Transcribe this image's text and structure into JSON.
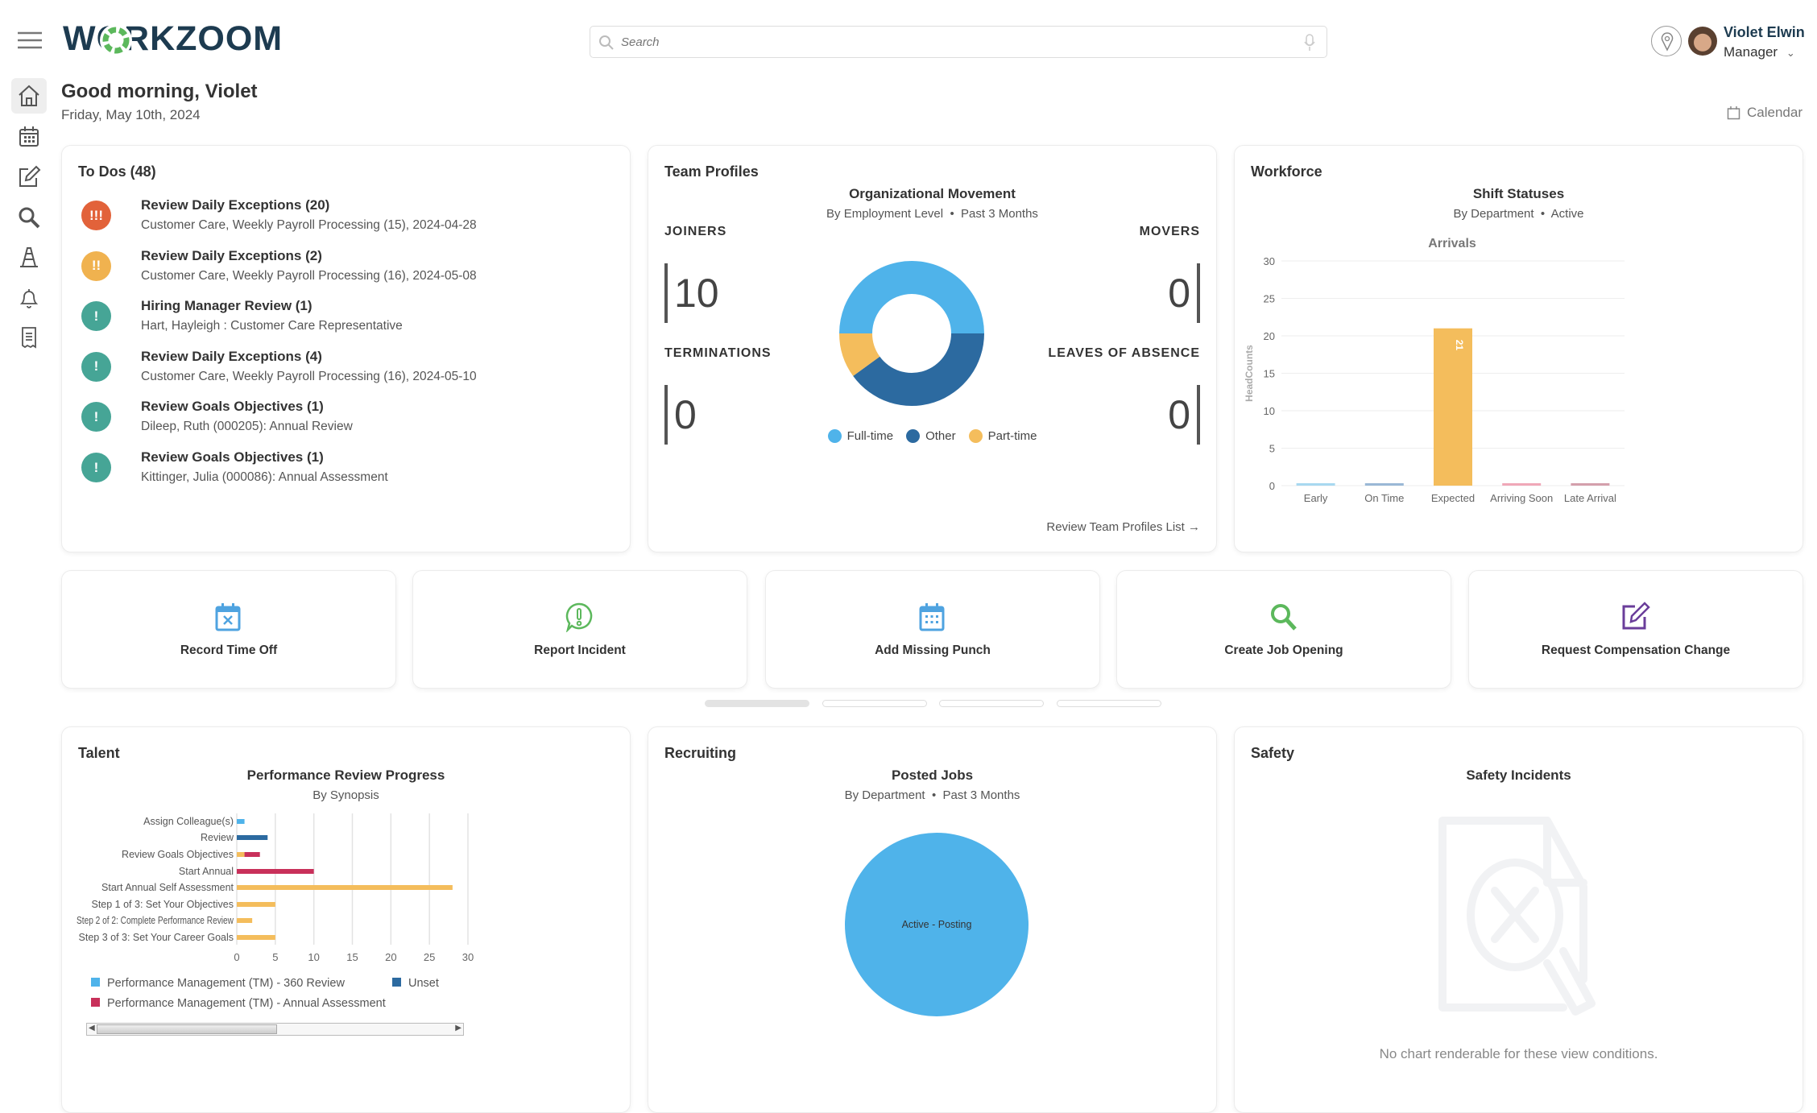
{
  "header": {
    "app_name": "WORKZOOM",
    "search_placeholder": "Search",
    "user_name": "Violet Elwin",
    "user_role": "Manager"
  },
  "sidebar": {
    "items": [
      {
        "icon": "home-icon"
      },
      {
        "icon": "calendar-icon"
      },
      {
        "icon": "edit-icon"
      },
      {
        "icon": "search-icon"
      },
      {
        "icon": "cone-icon"
      },
      {
        "icon": "bell-icon"
      },
      {
        "icon": "receipt-icon"
      }
    ]
  },
  "greeting": {
    "title": "Good morning, Violet",
    "date": "Friday, May 10th, 2024",
    "calendar_link": "Calendar"
  },
  "todos": {
    "title": "To Dos (48)",
    "items": [
      {
        "title": "Review Daily Exceptions (20)",
        "subtitle": "Customer Care, Weekly Payroll Processing (15), 2024-04-28",
        "badge": "!!!",
        "color": "#e2623a"
      },
      {
        "title": "Review Daily Exceptions (2)",
        "subtitle": "Customer Care, Weekly Payroll Processing (16), 2024-05-08",
        "badge": "!!",
        "color": "#f0b24f"
      },
      {
        "title": "Hiring Manager Review (1)",
        "subtitle": "Hart, Hayleigh : Customer Care Representative",
        "badge": "!",
        "color": "#46a596"
      },
      {
        "title": "Review Daily Exceptions (4)",
        "subtitle": "Customer Care, Weekly Payroll Processing (16), 2024-05-10",
        "badge": "!",
        "color": "#46a596"
      },
      {
        "title": "Review Goals Objectives (1)",
        "subtitle": "Dileep, Ruth (000205): Annual Review",
        "badge": "!",
        "color": "#46a596"
      },
      {
        "title": "Review Goals Objectives (1)",
        "subtitle": "Kittinger, Julia (000086): Annual Assessment",
        "badge": "!",
        "color": "#46a596"
      }
    ]
  },
  "team": {
    "title": "Team Profiles",
    "chart_title": "Organizational Movement",
    "sub1": "By Employment Level",
    "sub2": "Past 3 Months",
    "joiners_label": "JOINERS",
    "joiners": "10",
    "movers_label": "MOVERS",
    "movers": "0",
    "terminations_label": "TERMINATIONS",
    "terminations": "0",
    "loa_label": "LEAVES OF ABSENCE",
    "loa": "0",
    "link": "Review Team Profiles List →"
  },
  "workforce": {
    "title": "Workforce",
    "chart_title": "Shift Statuses",
    "sub1": "By Department",
    "sub2": "Active"
  },
  "quick_actions": [
    {
      "label": "Record Time Off",
      "icon": "calendar-x-icon",
      "color": "#4fa3e0"
    },
    {
      "label": "Report Incident",
      "icon": "alert-bubble-icon",
      "color": "#5cb85c"
    },
    {
      "label": "Add Missing Punch",
      "icon": "calendar-grid-icon",
      "color": "#4fa3e0"
    },
    {
      "label": "Create Job Opening",
      "icon": "search-icon",
      "color": "#5cb85c"
    },
    {
      "label": "Request Compensation Change",
      "icon": "edit-icon",
      "color": "#6a3d9a"
    }
  ],
  "pager": {
    "pages": 4,
    "active": 1
  },
  "talent": {
    "title": "Talent",
    "chart_title": "Performance Review Progress",
    "sub": "By Synopsis",
    "scroll_fraction": 0.5
  },
  "recruiting": {
    "title": "Recruiting",
    "chart_title": "Posted Jobs",
    "sub1": "By Department",
    "sub2": "Past 3 Months"
  },
  "safety": {
    "title": "Safety",
    "chart_title": "Safety Incidents",
    "empty_text": "No chart renderable for these view conditions."
  },
  "chart_data": [
    {
      "type": "pie",
      "variant": "donut",
      "series": [
        {
          "name": "Full-time",
          "value": 5,
          "color": "#4fb3ea"
        },
        {
          "name": "Other",
          "value": 4,
          "color": "#2c6aa0"
        },
        {
          "name": "Part-time",
          "value": 1,
          "color": "#f4bd5c"
        }
      ],
      "legend": "bottom"
    },
    {
      "type": "bar",
      "title": "Arrivals",
      "ylabel": "HeadCounts",
      "categories": [
        "Early",
        "On Time",
        "Expected",
        "Arriving Soon",
        "Late Arrival"
      ],
      "values": [
        0,
        0,
        21,
        0,
        0
      ],
      "colors": [
        "#a8d8f0",
        "#9ab8d6",
        "#f4bd5c",
        "#f0a8b8",
        "#d4a0ac"
      ],
      "ylim": [
        0,
        30
      ],
      "yticks": [
        0,
        5,
        10,
        15,
        20,
        25,
        30
      ],
      "data_labels": [
        "",
        "",
        "21",
        "",
        ""
      ],
      "grid": true
    },
    {
      "type": "bar",
      "orientation": "horizontal",
      "stacked": true,
      "categories": [
        "Assign Colleague(s)",
        "Review",
        "Review Goals Objectives",
        "Start Annual",
        "Start Annual Self Assessment",
        "Step 1 of 3: Set Your Objectives",
        "Step 2 of 2: Complete Performance Review",
        "Step 3 of 3: Set Your Career Goals"
      ],
      "series": [
        {
          "values": [
            0,
            0,
            1,
            0,
            28,
            5,
            2,
            5
          ],
          "color": "#f4bd5c"
        },
        {
          "name": "Performance Management (TM) - 360 Review",
          "values": [
            1,
            0,
            0,
            0,
            0,
            0,
            0,
            0
          ],
          "color": "#4fb3ea"
        },
        {
          "name": "Unset",
          "values": [
            0,
            4,
            0,
            0,
            0,
            0,
            0,
            0
          ],
          "color": "#2c6aa0"
        },
        {
          "name": "Performance Management (TM) - Annual Assessment",
          "values": [
            0,
            0,
            2,
            10,
            0,
            0,
            0,
            0
          ],
          "color": "#c8305a"
        }
      ],
      "xlim": [
        0,
        30
      ],
      "xticks": [
        0,
        5,
        10,
        15,
        20,
        25,
        30
      ],
      "grid": true,
      "legend": "bottom"
    },
    {
      "type": "pie",
      "series": [
        {
          "name": "Active - Posting",
          "value": 1,
          "color": "#4fb3ea"
        }
      ]
    }
  ]
}
